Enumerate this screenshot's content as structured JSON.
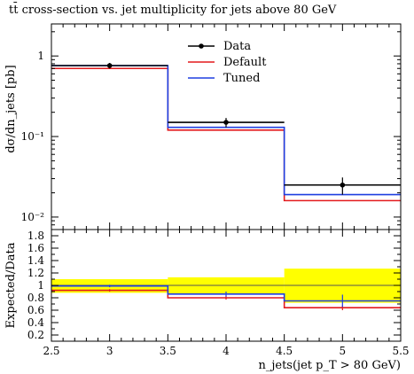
{
  "chart_data": [
    {
      "type": "line",
      "title": "tt̄ cross-section vs. jet multiplicity for jets above 80 GeV",
      "ylabel": "dσ/dn_jets [pb]",
      "xlim": [
        2.5,
        5.5
      ],
      "ylim": [
        0.007,
        2.5
      ],
      "yscale": "log",
      "bin_edges": [
        2.5,
        3.5,
        4.5,
        5.5
      ],
      "x": [
        3,
        4,
        5
      ],
      "series": [
        {
          "name": "Data",
          "values": [
            0.76,
            0.15,
            0.025
          ],
          "err_up": [
            0.06,
            0.02,
            0.006
          ],
          "err_down": [
            0.06,
            0.02,
            0.006
          ],
          "color": "#000000",
          "style": "markers"
        },
        {
          "name": "Default",
          "values": [
            0.7,
            0.12,
            0.016
          ],
          "color": "#e3191c",
          "style": "step"
        },
        {
          "name": "Tuned",
          "values": [
            0.76,
            0.13,
            0.019
          ],
          "color": "#1f3fe0",
          "style": "step"
        }
      ],
      "legend": "top-right",
      "yticks": [
        "1",
        "10⁻¹",
        "10⁻²"
      ]
    },
    {
      "type": "line",
      "ylabel": "Expected/Data",
      "xlabel": "n_jets(jet p_T > 80 GeV)",
      "xlim": [
        2.5,
        5.5
      ],
      "ylim": [
        0.1,
        1.9
      ],
      "bin_edges": [
        2.5,
        3.5,
        4.5,
        5.5
      ],
      "x": [
        3,
        4,
        5
      ],
      "band": {
        "color": "#ffff00",
        "lower": [
          0.88,
          0.87,
          0.72
        ],
        "upper": [
          1.1,
          1.13,
          1.27
        ]
      },
      "series": [
        {
          "name": "Default",
          "values": [
            0.92,
            0.8,
            0.64
          ],
          "err": [
            0.02,
            0.03,
            0.04
          ],
          "color": "#e3191c"
        },
        {
          "name": "Tuned",
          "values": [
            0.99,
            0.86,
            0.75
          ],
          "err": [
            0.02,
            0.04,
            0.1
          ],
          "color": "#1f3fe0"
        }
      ],
      "yticks": [
        "0.2",
        "0.4",
        "0.6",
        "0.8",
        "1",
        "1.2",
        "1.4",
        "1.6",
        "1.8"
      ],
      "xticks": [
        "2.5",
        "3",
        "3.5",
        "4",
        "4.5",
        "5",
        "5.5"
      ]
    }
  ]
}
